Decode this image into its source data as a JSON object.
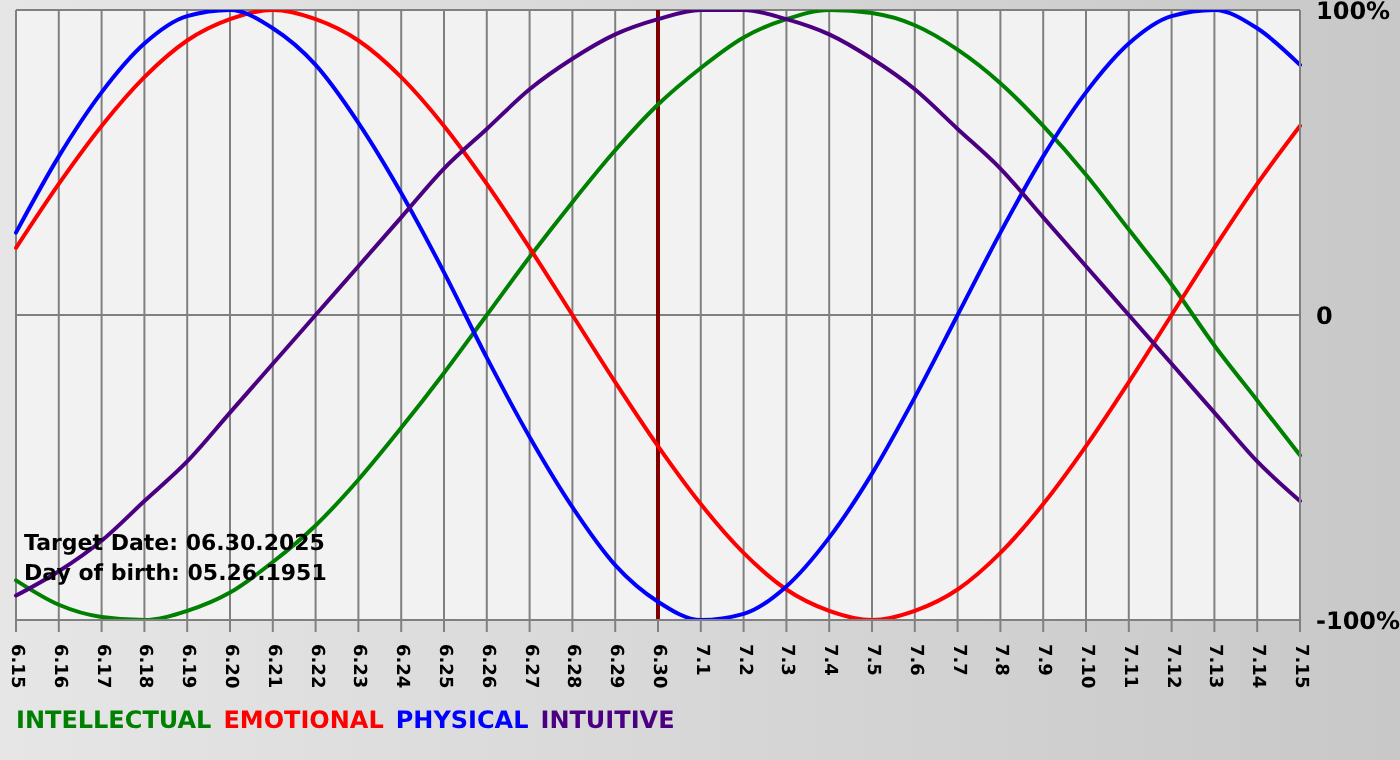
{
  "chart_data": {
    "type": "line",
    "categories": [
      "6.15",
      "6.16",
      "6.17",
      "6.18",
      "6.19",
      "6.20",
      "6.21",
      "6.22",
      "6.23",
      "6.24",
      "6.25",
      "6.26",
      "6.27",
      "6.28",
      "6.29",
      "6.30",
      "7.1",
      "7.2",
      "7.3",
      "7.4",
      "7.5",
      "7.6",
      "7.7",
      "7.8",
      "7.9",
      "7.10",
      "7.11",
      "7.12",
      "7.13",
      "7.14",
      "7.15"
    ],
    "series": [
      {
        "name": "INTELLECTUAL",
        "color": "#008000",
        "values": [
          -87,
          -95,
          -99,
          -100,
          -97,
          -91,
          -81,
          -69,
          -54,
          -37,
          -19,
          0,
          19,
          37,
          54,
          69,
          81,
          91,
          97,
          100,
          99,
          95,
          87,
          76,
          62,
          46,
          28,
          10,
          -10,
          -28,
          -46
        ]
      },
      {
        "name": "EMOTIONAL",
        "color": "#ff0000",
        "values": [
          22,
          43,
          62,
          78,
          90,
          97,
          100,
          97,
          90,
          78,
          62,
          43,
          22,
          0,
          -22,
          -43,
          -62,
          -78,
          -90,
          -97,
          -100,
          -97,
          -90,
          -78,
          -62,
          -43,
          -22,
          0,
          22,
          43,
          62
        ]
      },
      {
        "name": "PHYSICAL",
        "color": "#0000ff",
        "values": [
          27,
          52,
          73,
          89,
          98,
          100,
          94,
          82,
          63,
          40,
          14,
          -14,
          -40,
          -63,
          -82,
          -94,
          -100,
          -98,
          -89,
          -73,
          -52,
          -27,
          0,
          27,
          52,
          73,
          89,
          98,
          100,
          94,
          82
        ]
      },
      {
        "name": "INTUITIVE",
        "color": "#4b0082",
        "values": [
          -92,
          -84,
          -74,
          -61,
          -48,
          -32,
          -16,
          0,
          16,
          32,
          48,
          61,
          74,
          84,
          92,
          97,
          100,
          100,
          97,
          92,
          84,
          74,
          61,
          48,
          32,
          16,
          0,
          -16,
          -32,
          -48,
          -61
        ]
      }
    ],
    "ylim": [
      -100,
      100
    ],
    "yticks": [
      {
        "value": 100,
        "label": "100%"
      },
      0,
      {
        "value": -100,
        "label": "-100%"
      }
    ],
    "grid": true,
    "legend": "bottom",
    "marker": "none",
    "line_style": "solid",
    "ref_lines": [
      {
        "axis": "x",
        "value": "6.30",
        "color": "#800000"
      }
    ],
    "annotations": [
      "Target Date: 06.30.2025",
      "Day of birth: 05.26.1951"
    ]
  }
}
